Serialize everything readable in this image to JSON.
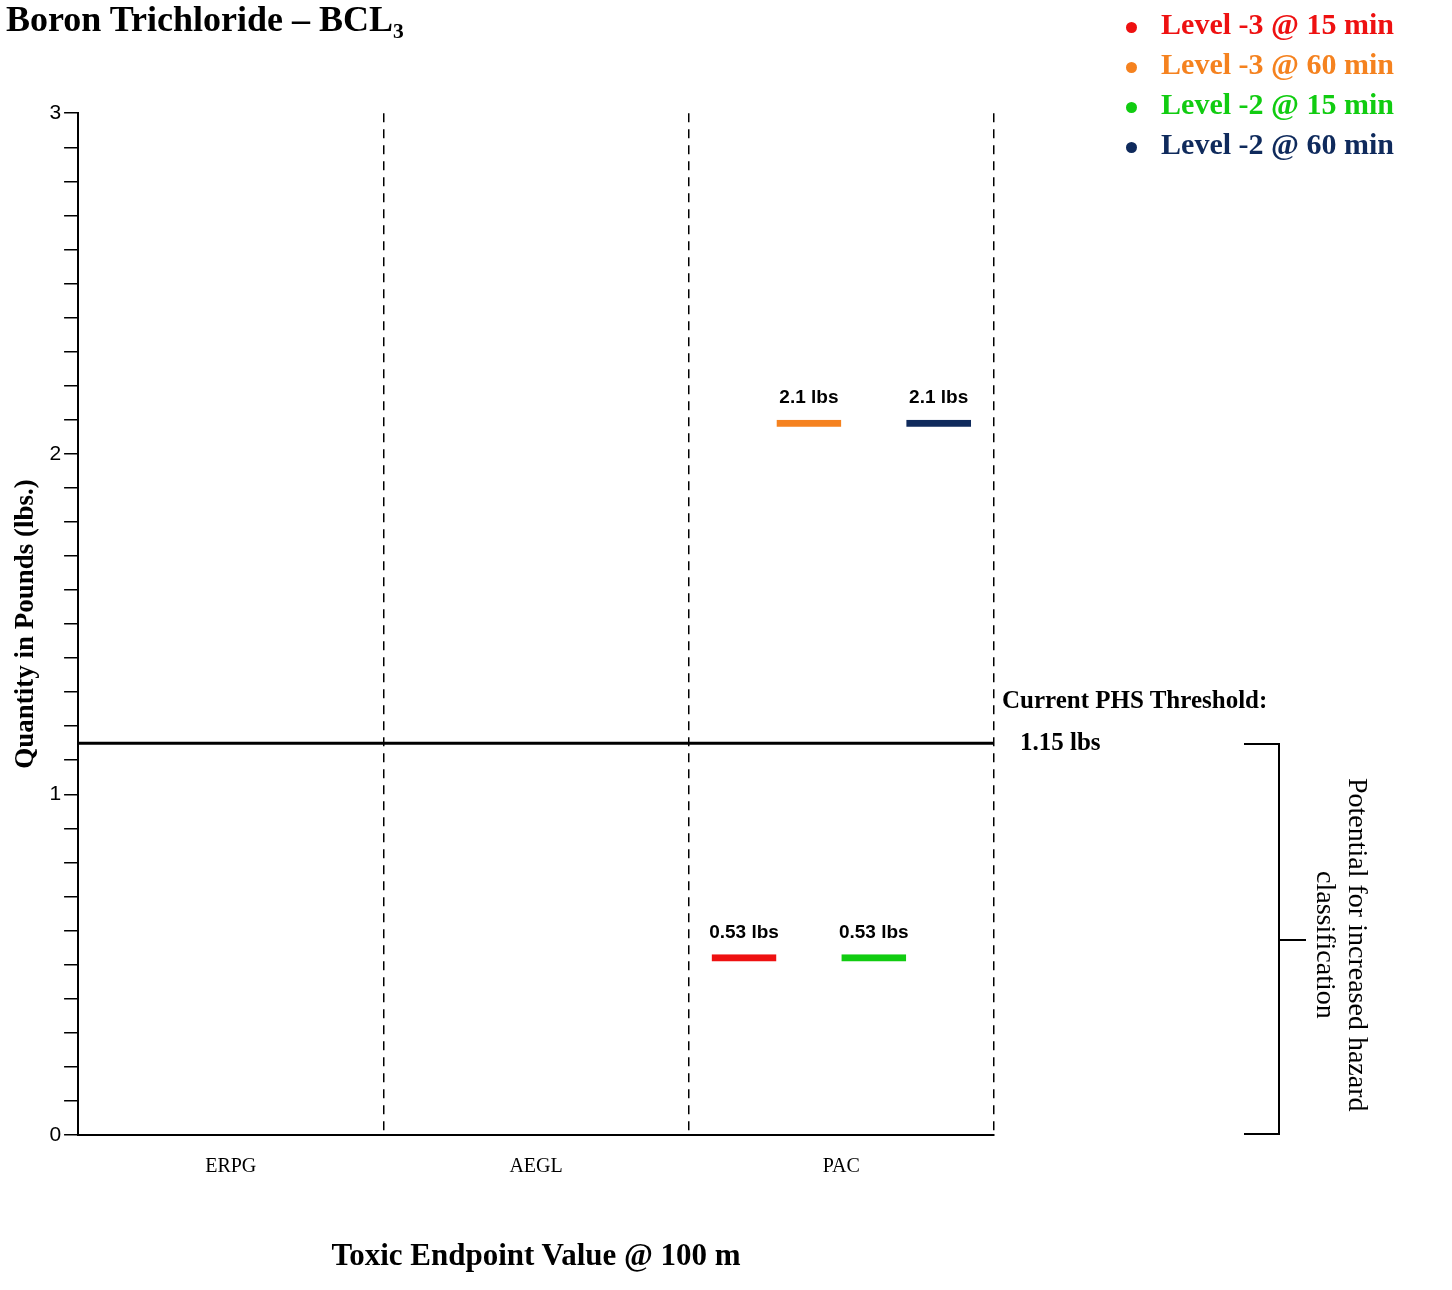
{
  "chart_data": {
    "type": "bar",
    "title": "Boron Trichloride – BCL₃",
    "xlabel": "Toxic Endpoint Value @ 100 m",
    "ylabel": "Quantity in Pounds (lbs.)",
    "categories": [
      "ERPG",
      "AEGL",
      "PAC"
    ],
    "series": [
      {
        "name": "Level -3 @ 15 min",
        "color": "#ee1111",
        "values": [
          null,
          null,
          0.53
        ],
        "value_labels": [
          null,
          null,
          "0.53 lbs"
        ]
      },
      {
        "name": "Level -3 @ 60 min",
        "color": "#f5821f",
        "values": [
          null,
          null,
          2.1
        ],
        "value_labels": [
          null,
          null,
          "2.1 lbs"
        ]
      },
      {
        "name": "Level -2 @ 15 min",
        "color": "#11cc11",
        "values": [
          null,
          null,
          0.53
        ],
        "value_labels": [
          null,
          null,
          "0.53 lbs"
        ]
      },
      {
        "name": "Level -2 @ 60 min",
        "color": "#0f2a5c",
        "values": [
          null,
          null,
          2.1
        ],
        "value_labels": [
          null,
          null,
          "2.1 lbs"
        ]
      }
    ],
    "ylim": [
      0,
      3
    ],
    "yticks": [
      0,
      {
        "value": 0.1,
        "label": null
      },
      {
        "value": 0.2,
        "label": null
      },
      {
        "value": 0.3,
        "label": null
      },
      {
        "value": 0.4,
        "label": null
      },
      {
        "value": 0.5,
        "label": null
      },
      {
        "value": 0.6,
        "label": null
      },
      {
        "value": 0.7,
        "label": null
      },
      {
        "value": 0.8,
        "label": null
      },
      {
        "value": 0.9,
        "label": null
      },
      1,
      {
        "value": 1.1,
        "label": null
      },
      {
        "value": 1.2,
        "label": null
      },
      {
        "value": 1.3,
        "label": null
      },
      {
        "value": 1.4,
        "label": null
      },
      {
        "value": 1.5,
        "label": null
      },
      {
        "value": 1.6,
        "label": null
      },
      {
        "value": 1.7,
        "label": null
      },
      {
        "value": 1.8,
        "label": null
      },
      {
        "value": 1.9,
        "label": null
      },
      2,
      {
        "value": 2.1,
        "label": null
      },
      {
        "value": 2.2,
        "label": null
      },
      {
        "value": 2.3,
        "label": null
      },
      {
        "value": 2.4,
        "label": null
      },
      {
        "value": 2.5,
        "label": null
      },
      {
        "value": 2.6,
        "label": null
      },
      {
        "value": 2.7,
        "label": null
      },
      {
        "value": 2.8,
        "label": null
      },
      {
        "value": 2.9,
        "label": null
      },
      3
    ],
    "ref_lines": [
      {
        "axis": "y",
        "value": 1.15,
        "label": "Current PHS Threshold: 1.15 lbs",
        "color": "#000000"
      }
    ],
    "annotations": [
      "Potential for increased hazard classification"
    ],
    "grid": "x",
    "legend": "top right"
  }
}
